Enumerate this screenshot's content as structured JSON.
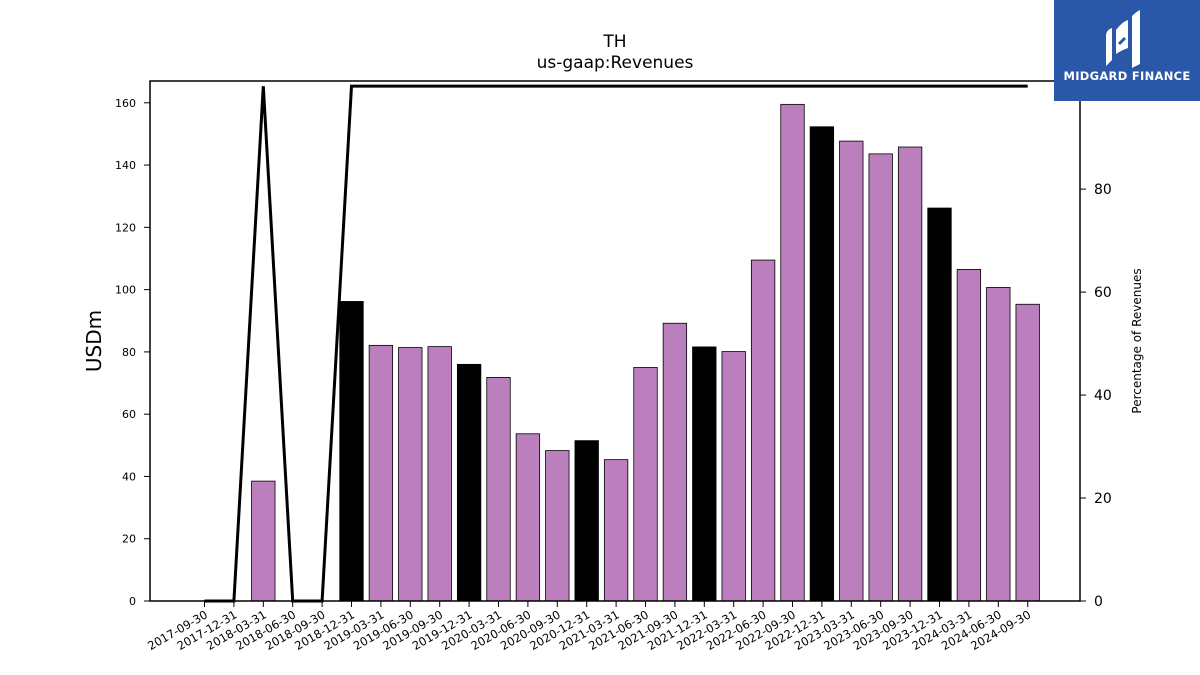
{
  "chart_data": {
    "type": "bar",
    "title": "TH",
    "subtitle": "us-gaap:Revenues",
    "ylabel": "USDm",
    "y2label": "Percentage of Revenues",
    "ylim": [
      0,
      167
    ],
    "y2lim": [
      0,
      101
    ],
    "yticks": [
      0,
      20,
      40,
      60,
      80,
      100,
      120,
      140,
      160
    ],
    "y2ticks": [
      0,
      20,
      40,
      60,
      80,
      100
    ],
    "categories": [
      "2017-09-30",
      "2017-12-31",
      "2018-03-31",
      "2018-06-30",
      "2018-09-30",
      "2018-12-31",
      "2019-03-31",
      "2019-06-30",
      "2019-09-30",
      "2019-12-31",
      "2020-03-31",
      "2020-06-30",
      "2020-09-30",
      "2020-12-31",
      "2021-03-31",
      "2021-06-30",
      "2021-09-30",
      "2021-12-31",
      "2022-03-31",
      "2022-06-30",
      "2022-09-30",
      "2022-12-31",
      "2023-03-31",
      "2023-06-30",
      "2023-09-30",
      "2023-12-31",
      "2024-03-31",
      "2024-06-30",
      "2024-09-30"
    ],
    "series": [
      {
        "type": "bar",
        "values": [
          null,
          null,
          38.5,
          null,
          null,
          96.2,
          82.1,
          81.4,
          81.7,
          76.0,
          71.8,
          53.7,
          48.3,
          51.5,
          45.4,
          75.0,
          89.2,
          81.6,
          80.1,
          109.5,
          159.5,
          152.3,
          147.7,
          143.6,
          145.8,
          126.2,
          106.5,
          100.7,
          95.3
        ],
        "colors": [
          "#bb7fbd",
          "#bb7fbd",
          "#bb7fbd",
          "#bb7fbd",
          "#bb7fbd",
          "#000000",
          "#bb7fbd",
          "#bb7fbd",
          "#bb7fbd",
          "#000000",
          "#bb7fbd",
          "#bb7fbd",
          "#bb7fbd",
          "#000000",
          "#bb7fbd",
          "#bb7fbd",
          "#bb7fbd",
          "#000000",
          "#bb7fbd",
          "#bb7fbd",
          "#bb7fbd",
          "#000000",
          "#bb7fbd",
          "#bb7fbd",
          "#bb7fbd",
          "#000000",
          "#bb7fbd",
          "#bb7fbd",
          "#bb7fbd"
        ]
      },
      {
        "type": "line",
        "axis": "right",
        "color": "#000000",
        "values": [
          0,
          0,
          100,
          0,
          0,
          100,
          100,
          100,
          100,
          100,
          100,
          100,
          100,
          100,
          100,
          100,
          100,
          100,
          100,
          100,
          100,
          100,
          100,
          100,
          100,
          100,
          100,
          100,
          100
        ]
      }
    ],
    "grid": false,
    "legend": "none"
  },
  "logo": {
    "text": "MIDGARD FINANCE",
    "color": "#2a57a8"
  }
}
